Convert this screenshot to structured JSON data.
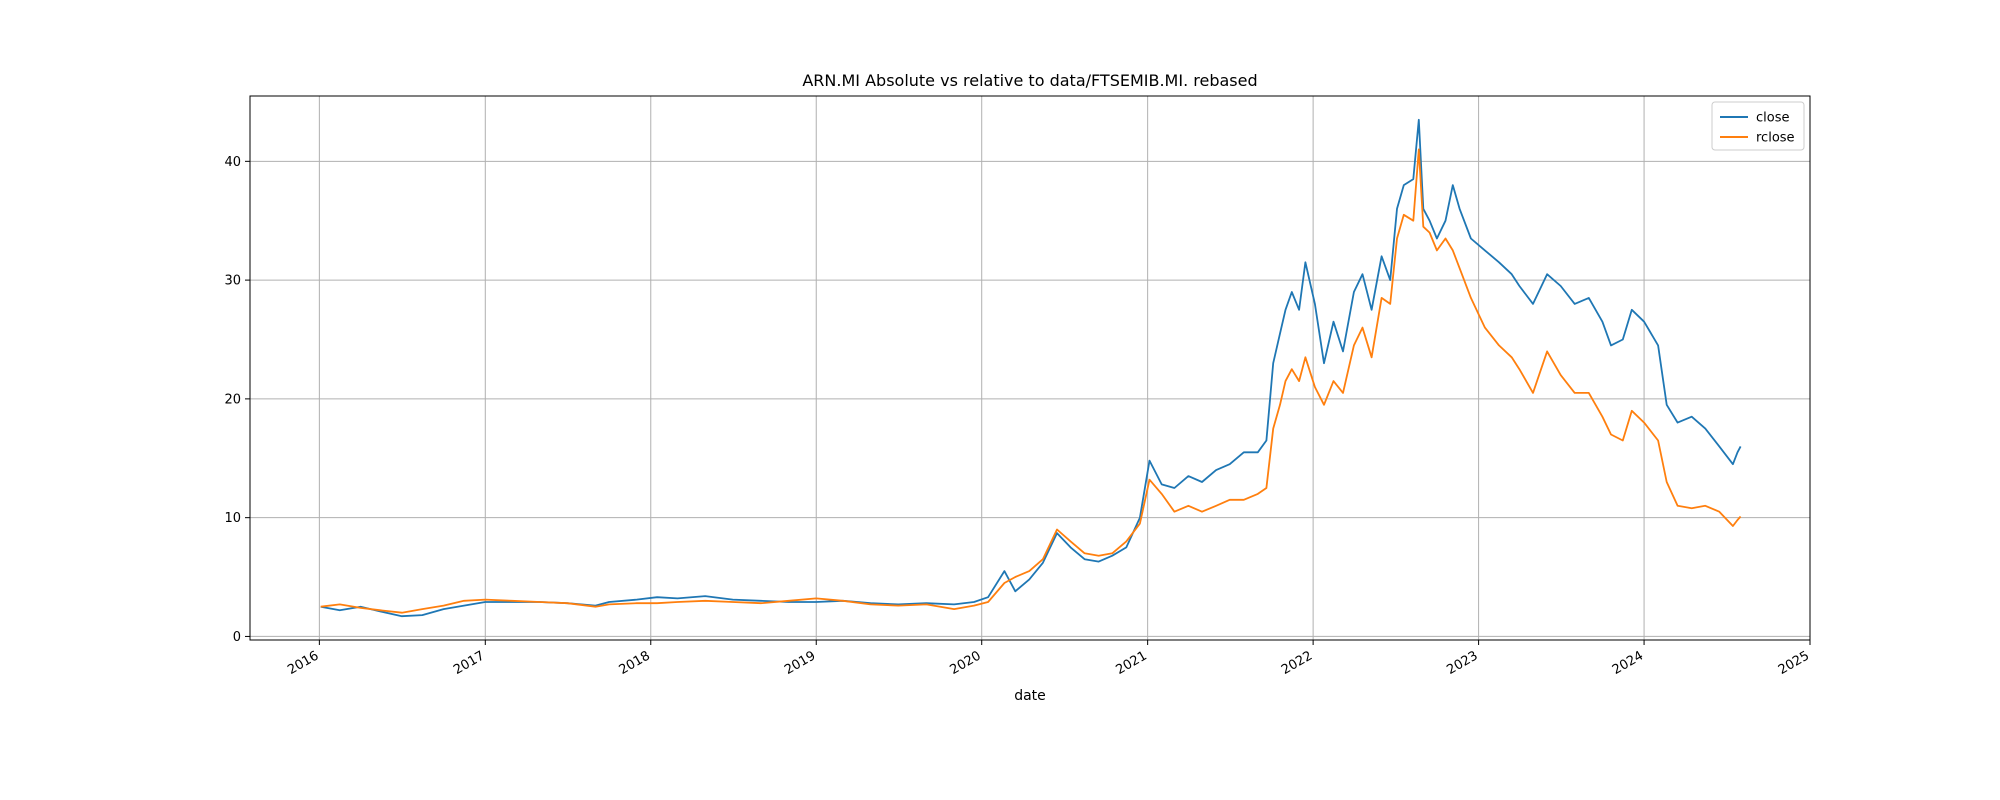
{
  "chart_data": {
    "type": "line",
    "title": "ARN.MI Absolute vs relative to data/FTSEMIB.MI. rebased",
    "xlabel": "date",
    "ylabel": "",
    "x_ticks": [
      "2016",
      "2017",
      "2018",
      "2019",
      "2020",
      "2021",
      "2022",
      "2023",
      "2024",
      "2025"
    ],
    "y_ticks": [
      "0",
      "10",
      "20",
      "30",
      "40"
    ],
    "xlim": [
      "2015-08-01",
      "2025-01-01"
    ],
    "ylim": [
      -0.3,
      45.5
    ],
    "grid": true,
    "legend_position": "top-right",
    "series": [
      {
        "name": "close",
        "color": "#1f77b4",
        "points": [
          [
            "2016-01-04",
            2.5
          ],
          [
            "2016-02-15",
            2.2
          ],
          [
            "2016-04-01",
            2.5
          ],
          [
            "2016-05-15",
            2.1
          ],
          [
            "2016-07-01",
            1.7
          ],
          [
            "2016-08-15",
            1.8
          ],
          [
            "2016-10-01",
            2.3
          ],
          [
            "2016-11-15",
            2.6
          ],
          [
            "2017-01-01",
            2.9
          ],
          [
            "2017-03-01",
            2.9
          ],
          [
            "2017-05-01",
            2.9
          ],
          [
            "2017-07-01",
            2.8
          ],
          [
            "2017-09-01",
            2.6
          ],
          [
            "2017-10-01",
            2.9
          ],
          [
            "2017-12-01",
            3.1
          ],
          [
            "2018-01-15",
            3.3
          ],
          [
            "2018-03-01",
            3.2
          ],
          [
            "2018-05-01",
            3.4
          ],
          [
            "2018-07-01",
            3.1
          ],
          [
            "2018-09-01",
            3.0
          ],
          [
            "2018-11-01",
            2.9
          ],
          [
            "2019-01-01",
            2.9
          ],
          [
            "2019-03-01",
            3.0
          ],
          [
            "2019-05-01",
            2.8
          ],
          [
            "2019-07-01",
            2.7
          ],
          [
            "2019-09-01",
            2.8
          ],
          [
            "2019-11-01",
            2.7
          ],
          [
            "2019-12-15",
            2.9
          ],
          [
            "2020-01-15",
            3.3
          ],
          [
            "2020-02-20",
            5.5
          ],
          [
            "2020-03-15",
            3.8
          ],
          [
            "2020-04-15",
            4.8
          ],
          [
            "2020-05-15",
            6.2
          ],
          [
            "2020-06-15",
            8.7
          ],
          [
            "2020-07-15",
            7.5
          ],
          [
            "2020-08-15",
            6.5
          ],
          [
            "2020-09-15",
            6.3
          ],
          [
            "2020-10-15",
            6.8
          ],
          [
            "2020-11-15",
            7.5
          ],
          [
            "2020-12-15",
            10.0
          ],
          [
            "2021-01-05",
            14.8
          ],
          [
            "2021-02-01",
            12.8
          ],
          [
            "2021-03-01",
            12.5
          ],
          [
            "2021-04-01",
            13.5
          ],
          [
            "2021-05-01",
            13.0
          ],
          [
            "2021-06-01",
            14.0
          ],
          [
            "2021-07-01",
            14.5
          ],
          [
            "2021-08-01",
            15.5
          ],
          [
            "2021-09-01",
            15.5
          ],
          [
            "2021-09-20",
            16.5
          ],
          [
            "2021-10-05",
            23.0
          ],
          [
            "2021-10-20",
            25.5
          ],
          [
            "2021-11-01",
            27.5
          ],
          [
            "2021-11-15",
            29.0
          ],
          [
            "2021-12-01",
            27.5
          ],
          [
            "2021-12-15",
            31.5
          ],
          [
            "2022-01-05",
            28.0
          ],
          [
            "2022-01-25",
            23.0
          ],
          [
            "2022-02-15",
            26.5
          ],
          [
            "2022-03-08",
            24.0
          ],
          [
            "2022-04-01",
            29.0
          ],
          [
            "2022-04-20",
            30.5
          ],
          [
            "2022-05-10",
            27.5
          ],
          [
            "2022-06-01",
            32.0
          ],
          [
            "2022-06-20",
            30.0
          ],
          [
            "2022-07-05",
            36.0
          ],
          [
            "2022-07-20",
            38.0
          ],
          [
            "2022-08-10",
            38.5
          ],
          [
            "2022-08-22",
            43.5
          ],
          [
            "2022-09-01",
            36.0
          ],
          [
            "2022-09-15",
            35.0
          ],
          [
            "2022-10-01",
            33.5
          ],
          [
            "2022-10-20",
            35.0
          ],
          [
            "2022-11-05",
            38.0
          ],
          [
            "2022-11-20",
            36.0
          ],
          [
            "2022-12-15",
            33.5
          ],
          [
            "2023-01-15",
            32.5
          ],
          [
            "2023-02-15",
            31.5
          ],
          [
            "2023-03-15",
            30.5
          ],
          [
            "2023-04-01",
            29.5
          ],
          [
            "2023-05-01",
            28.0
          ],
          [
            "2023-06-01",
            30.5
          ],
          [
            "2023-07-01",
            29.5
          ],
          [
            "2023-08-01",
            28.0
          ],
          [
            "2023-09-01",
            28.5
          ],
          [
            "2023-10-01",
            26.5
          ],
          [
            "2023-10-20",
            24.5
          ],
          [
            "2023-11-15",
            25.0
          ],
          [
            "2023-12-05",
            27.5
          ],
          [
            "2024-01-01",
            26.5
          ],
          [
            "2024-02-01",
            24.5
          ],
          [
            "2024-02-20",
            19.5
          ],
          [
            "2024-03-15",
            18.0
          ],
          [
            "2024-04-15",
            18.5
          ],
          [
            "2024-05-15",
            17.5
          ],
          [
            "2024-06-15",
            16.0
          ],
          [
            "2024-07-15",
            14.5
          ],
          [
            "2024-07-25",
            15.5
          ],
          [
            "2024-08-01",
            16.0
          ]
        ]
      },
      {
        "name": "rclose",
        "color": "#ff7f0e",
        "points": [
          [
            "2016-01-04",
            2.5
          ],
          [
            "2016-02-15",
            2.7
          ],
          [
            "2016-04-01",
            2.4
          ],
          [
            "2016-05-15",
            2.2
          ],
          [
            "2016-07-01",
            2.0
          ],
          [
            "2016-08-15",
            2.3
          ],
          [
            "2016-10-01",
            2.6
          ],
          [
            "2016-11-15",
            3.0
          ],
          [
            "2017-01-01",
            3.1
          ],
          [
            "2017-03-01",
            3.0
          ],
          [
            "2017-05-01",
            2.9
          ],
          [
            "2017-07-01",
            2.8
          ],
          [
            "2017-09-01",
            2.5
          ],
          [
            "2017-10-01",
            2.7
          ],
          [
            "2017-12-01",
            2.8
          ],
          [
            "2018-01-15",
            2.8
          ],
          [
            "2018-03-01",
            2.9
          ],
          [
            "2018-05-01",
            3.0
          ],
          [
            "2018-07-01",
            2.9
          ],
          [
            "2018-09-01",
            2.8
          ],
          [
            "2018-11-01",
            3.0
          ],
          [
            "2019-01-01",
            3.2
          ],
          [
            "2019-03-01",
            3.0
          ],
          [
            "2019-05-01",
            2.7
          ],
          [
            "2019-07-01",
            2.6
          ],
          [
            "2019-09-01",
            2.7
          ],
          [
            "2019-11-01",
            2.3
          ],
          [
            "2019-12-15",
            2.6
          ],
          [
            "2020-01-15",
            2.9
          ],
          [
            "2020-02-20",
            4.5
          ],
          [
            "2020-03-15",
            5.0
          ],
          [
            "2020-04-15",
            5.5
          ],
          [
            "2020-05-15",
            6.5
          ],
          [
            "2020-06-15",
            9.0
          ],
          [
            "2020-07-15",
            8.0
          ],
          [
            "2020-08-15",
            7.0
          ],
          [
            "2020-09-15",
            6.8
          ],
          [
            "2020-10-15",
            7.0
          ],
          [
            "2020-11-15",
            8.0
          ],
          [
            "2020-12-15",
            9.5
          ],
          [
            "2021-01-05",
            13.2
          ],
          [
            "2021-02-01",
            12.0
          ],
          [
            "2021-03-01",
            10.5
          ],
          [
            "2021-04-01",
            11.0
          ],
          [
            "2021-05-01",
            10.5
          ],
          [
            "2021-06-01",
            11.0
          ],
          [
            "2021-07-01",
            11.5
          ],
          [
            "2021-08-01",
            11.5
          ],
          [
            "2021-09-01",
            12.0
          ],
          [
            "2021-09-20",
            12.5
          ],
          [
            "2021-10-05",
            17.5
          ],
          [
            "2021-10-20",
            19.5
          ],
          [
            "2021-11-01",
            21.5
          ],
          [
            "2021-11-15",
            22.5
          ],
          [
            "2021-12-01",
            21.5
          ],
          [
            "2021-12-15",
            23.5
          ],
          [
            "2022-01-05",
            21.0
          ],
          [
            "2022-01-25",
            19.5
          ],
          [
            "2022-02-15",
            21.5
          ],
          [
            "2022-03-08",
            20.5
          ],
          [
            "2022-04-01",
            24.5
          ],
          [
            "2022-04-20",
            26.0
          ],
          [
            "2022-05-10",
            23.5
          ],
          [
            "2022-06-01",
            28.5
          ],
          [
            "2022-06-20",
            28.0
          ],
          [
            "2022-07-05",
            33.5
          ],
          [
            "2022-07-20",
            35.5
          ],
          [
            "2022-08-10",
            35.0
          ],
          [
            "2022-08-22",
            41.0
          ],
          [
            "2022-09-01",
            34.5
          ],
          [
            "2022-09-15",
            34.0
          ],
          [
            "2022-10-01",
            32.5
          ],
          [
            "2022-10-20",
            33.5
          ],
          [
            "2022-11-05",
            32.5
          ],
          [
            "2022-11-20",
            31.0
          ],
          [
            "2022-12-15",
            28.5
          ],
          [
            "2023-01-15",
            26.0
          ],
          [
            "2023-02-15",
            24.5
          ],
          [
            "2023-03-15",
            23.5
          ],
          [
            "2023-04-01",
            22.5
          ],
          [
            "2023-05-01",
            20.5
          ],
          [
            "2023-06-01",
            24.0
          ],
          [
            "2023-07-01",
            22.0
          ],
          [
            "2023-08-01",
            20.5
          ],
          [
            "2023-09-01",
            20.5
          ],
          [
            "2023-10-01",
            18.5
          ],
          [
            "2023-10-20",
            17.0
          ],
          [
            "2023-11-15",
            16.5
          ],
          [
            "2023-12-05",
            19.0
          ],
          [
            "2024-01-01",
            18.0
          ],
          [
            "2024-02-01",
            16.5
          ],
          [
            "2024-02-20",
            13.0
          ],
          [
            "2024-03-15",
            11.0
          ],
          [
            "2024-04-15",
            10.8
          ],
          [
            "2024-05-15",
            11.0
          ],
          [
            "2024-06-15",
            10.5
          ],
          [
            "2024-07-15",
            9.3
          ],
          [
            "2024-07-25",
            9.8
          ],
          [
            "2024-08-01",
            10.1
          ]
        ]
      }
    ]
  }
}
